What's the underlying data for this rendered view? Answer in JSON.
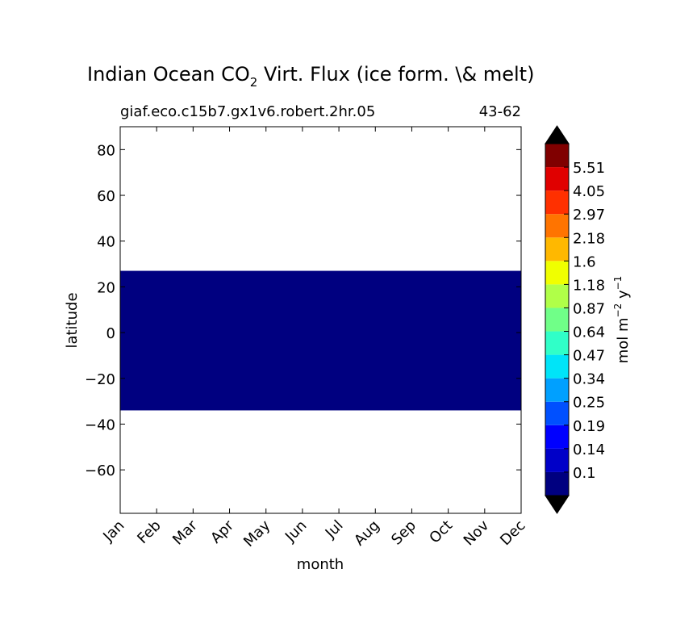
{
  "chart_data": {
    "type": "heatmap",
    "title_main": "Indian Ocean CO",
    "title_sub": "2",
    "title_rest": " Virt. Flux (ice form. \\& melt)",
    "subtitle_left": "giaf.eco.c15b7.gx1v6.robert.2hr.05",
    "subtitle_right": "43-62",
    "xlabel": "month",
    "ylabel": "latitude",
    "x_categories": [
      "Jan",
      "Feb",
      "Mar",
      "Apr",
      "May",
      "Jun",
      "Jul",
      "Aug",
      "Sep",
      "Oct",
      "Nov",
      "Dec"
    ],
    "xlim": [
      0,
      11
    ],
    "ylim": [
      -79,
      90
    ],
    "y_ticks": [
      {
        "value": 80,
        "label": "80"
      },
      {
        "value": 60,
        "label": "60"
      },
      {
        "value": 40,
        "label": "40"
      },
      {
        "value": 20,
        "label": "20"
      },
      {
        "value": 0,
        "label": "0"
      },
      {
        "value": -20,
        "label": "−20"
      },
      {
        "value": -40,
        "label": "−40"
      },
      {
        "value": -60,
        "label": "−60"
      }
    ],
    "filled_region": {
      "lat_min": -34,
      "lat_max": 27,
      "month_start": 0,
      "month_end": 11,
      "color": "#000080"
    },
    "colorbar": {
      "label_base": "mol m",
      "label_exp1": "−2",
      "label_mid": " y",
      "label_exp2": "−1",
      "under_color": "#000000",
      "over_color": "#000000",
      "colors": [
        "#000080",
        "#0000c8",
        "#0000ff",
        "#0050ff",
        "#00a0ff",
        "#00e4f8",
        "#30ffc8",
        "#70ff88",
        "#b0ff48",
        "#f0ff00",
        "#ffb800",
        "#ff7400",
        "#ff3000",
        "#e00000",
        "#800000"
      ],
      "boundary_labels": [
        "0.1",
        "0.14",
        "0.19",
        "0.25",
        "0.34",
        "0.47",
        "0.64",
        "0.87",
        "1.18",
        "1.6",
        "2.18",
        "2.97",
        "4.05",
        "5.51"
      ]
    }
  }
}
